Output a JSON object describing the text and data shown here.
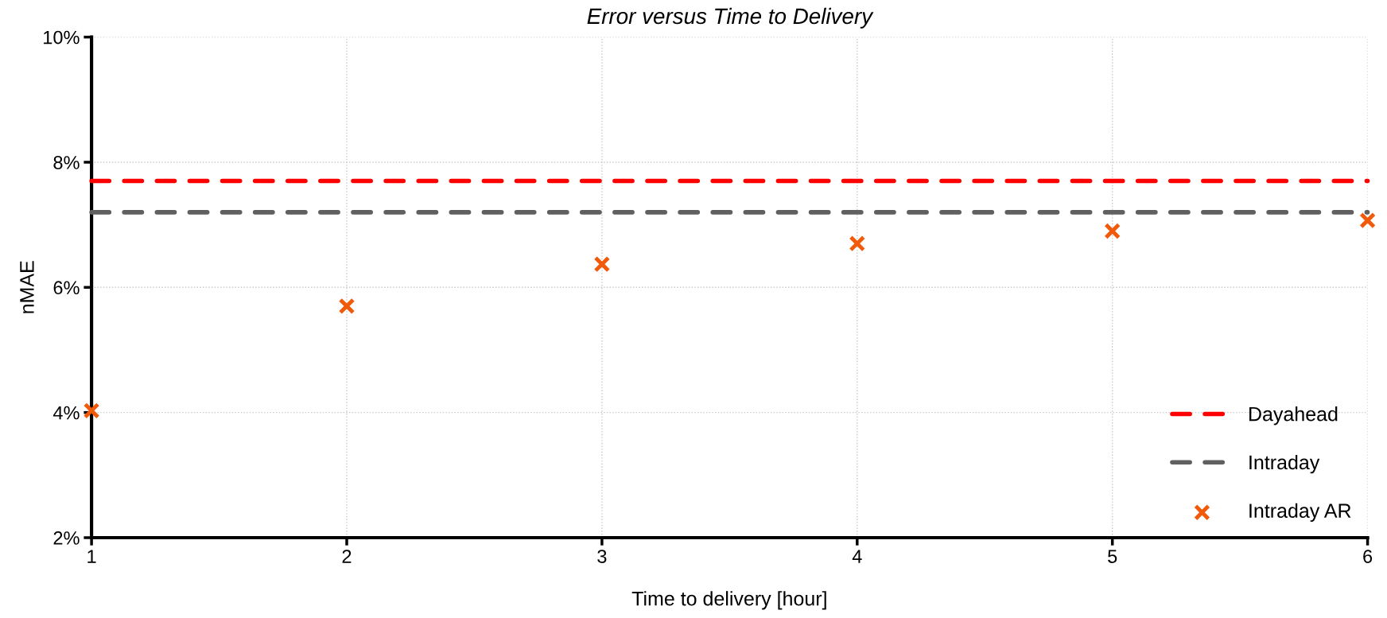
{
  "chart_data": {
    "type": "scatter",
    "title": "Error versus Time to Delivery",
    "xlabel": "Time to delivery [hour]",
    "ylabel": "nMAE",
    "series": [
      {
        "name": "Dayahead",
        "type": "line",
        "color": "#ff0000",
        "line_style": "dashed",
        "marker": "none",
        "x": [
          1,
          6
        ],
        "values": [
          7.7,
          7.7
        ]
      },
      {
        "name": "Intraday",
        "type": "line",
        "color": "#606060",
        "line_style": "dashed",
        "marker": "none",
        "x": [
          1,
          6
        ],
        "values": [
          7.2,
          7.2
        ]
      },
      {
        "name": "Intraday AR",
        "color": "#f05a0a",
        "marker": "cross",
        "x": [
          1,
          2,
          3,
          4,
          5,
          6
        ],
        "values": [
          4.03,
          5.7,
          6.37,
          6.7,
          6.9,
          7.07
        ]
      }
    ],
    "xlim": [
      1,
      6
    ],
    "xticks": [
      1,
      2,
      3,
      4,
      5,
      6
    ],
    "ylim": [
      2,
      10
    ],
    "yticks": [
      {
        "value": 2,
        "label": "2%"
      },
      {
        "value": 4,
        "label": "4%"
      },
      {
        "value": 6,
        "label": "6%"
      },
      {
        "value": 8,
        "label": "8%"
      },
      {
        "value": 10,
        "label": "10%"
      }
    ],
    "grid": true,
    "legend": "bottom right"
  }
}
